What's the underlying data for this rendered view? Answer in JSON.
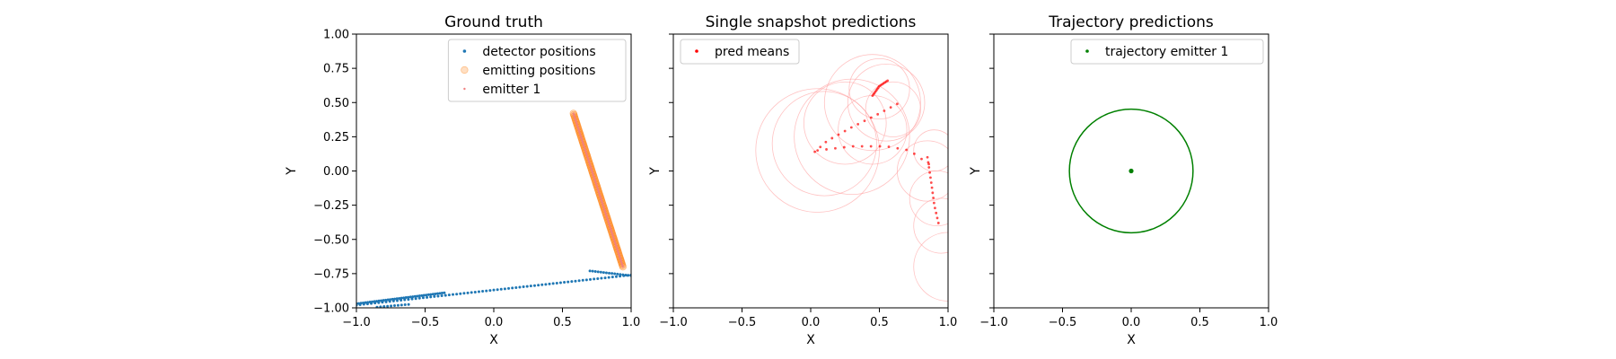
{
  "chart_data": [
    {
      "type": "scatter",
      "title": "Ground truth",
      "xlabel": "X",
      "ylabel": "Y",
      "xlim": [
        -1.0,
        1.0
      ],
      "ylim": [
        -1.0,
        1.0
      ],
      "xticks": [
        "−1.0",
        "−0.5",
        "0.0",
        "0.5",
        "1.0"
      ],
      "yticks": [
        "−1.00",
        "−0.75",
        "−0.50",
        "−0.25",
        "0.00",
        "0.25",
        "0.50",
        "0.75",
        "1.00"
      ],
      "legend_position": "top-right",
      "series": [
        {
          "name": "detector positions",
          "color": "#1f77b4",
          "segments": [
            {
              "from": [
                -1.0,
                -0.97
              ],
              "to": [
                -0.36,
                -0.89
              ],
              "count": 40
            },
            {
              "from": [
                -1.0,
                -0.98
              ],
              "to": [
                1.0,
                -0.76
              ],
              "count": 75
            },
            {
              "from": [
                -0.85,
                -0.995
              ],
              "to": [
                -0.62,
                -0.975
              ],
              "count": 10
            },
            {
              "from": [
                0.7,
                -0.73
              ],
              "to": [
                1.0,
                -0.765
              ],
              "count": 16
            }
          ]
        },
        {
          "name": "emitting positions",
          "color": "#ff7f0e",
          "style": "open-circle-filled",
          "segments": [
            {
              "from": [
                0.58,
                0.42
              ],
              "to": [
                0.94,
                -0.7
              ],
              "count": 110
            }
          ]
        },
        {
          "name": "emitter 1",
          "color": "#f08080",
          "segments": [
            {
              "from": [
                0.58,
                0.42
              ],
              "to": [
                0.94,
                -0.7
              ],
              "count": 110
            }
          ]
        }
      ]
    },
    {
      "type": "scatter",
      "title": "Single snapshot predictions",
      "xlabel": "X",
      "ylabel": "Y",
      "xlim": [
        -1.0,
        1.0
      ],
      "ylim": [
        -1.0,
        1.0
      ],
      "xticks": [
        "−1.0",
        "−0.5",
        "0.0",
        "0.5",
        "1.0"
      ],
      "legend_position": "top-left",
      "series": [
        {
          "name": "pred means",
          "color": "#ff0000",
          "polylines": [
            [
              [
                0.03,
                0.14
              ],
              [
                0.12,
                0.22
              ],
              [
                0.3,
                0.32
              ],
              [
                0.48,
                0.41
              ],
              [
                0.63,
                0.49
              ]
            ],
            [
              [
                0.45,
                0.55
              ],
              [
                0.5,
                0.62
              ],
              [
                0.56,
                0.66
              ]
            ],
            [
              [
                0.85,
                0.1
              ],
              [
                0.88,
                -0.1
              ],
              [
                0.9,
                -0.25
              ],
              [
                0.93,
                -0.38
              ]
            ],
            [
              [
                0.05,
                0.15
              ],
              [
                0.3,
                0.18
              ],
              [
                0.55,
                0.18
              ],
              [
                0.72,
                0.15
              ],
              [
                0.86,
                0.05
              ]
            ]
          ],
          "points_per_line": 14
        }
      ],
      "uncertainty_circles": {
        "color": "#ff9999",
        "circles": [
          [
            0.05,
            0.15,
            0.45
          ],
          [
            0.3,
            0.25,
            0.42
          ],
          [
            0.45,
            0.5,
            0.35
          ],
          [
            0.55,
            0.5,
            0.28
          ],
          [
            0.6,
            0.45,
            0.2
          ],
          [
            0.5,
            0.6,
            0.22
          ],
          [
            0.1,
            0.2,
            0.38
          ],
          [
            0.25,
            0.35,
            0.3
          ],
          [
            0.85,
            0.0,
            0.22
          ],
          [
            0.92,
            -0.2,
            0.2
          ],
          [
            0.95,
            -0.4,
            0.2
          ],
          [
            1.0,
            -0.7,
            0.25
          ],
          [
            0.9,
            0.15,
            0.15
          ],
          [
            0.45,
            0.3,
            0.25
          ]
        ]
      }
    },
    {
      "type": "scatter",
      "title": "Trajectory predictions",
      "xlabel": "X",
      "ylabel": "Y",
      "xlim": [
        -1.0,
        1.0
      ],
      "ylim": [
        -1.0,
        1.0
      ],
      "xticks": [
        "−1.0",
        "−0.5",
        "0.0",
        "0.5",
        "1.0"
      ],
      "legend_position": "top-right",
      "series": [
        {
          "name": "trajectory emitter 1",
          "color": "#008000",
          "points": [
            [
              0.0,
              0.0
            ]
          ],
          "circle": {
            "center": [
              0.0,
              0.0
            ],
            "radius": 0.45
          }
        }
      ]
    }
  ]
}
